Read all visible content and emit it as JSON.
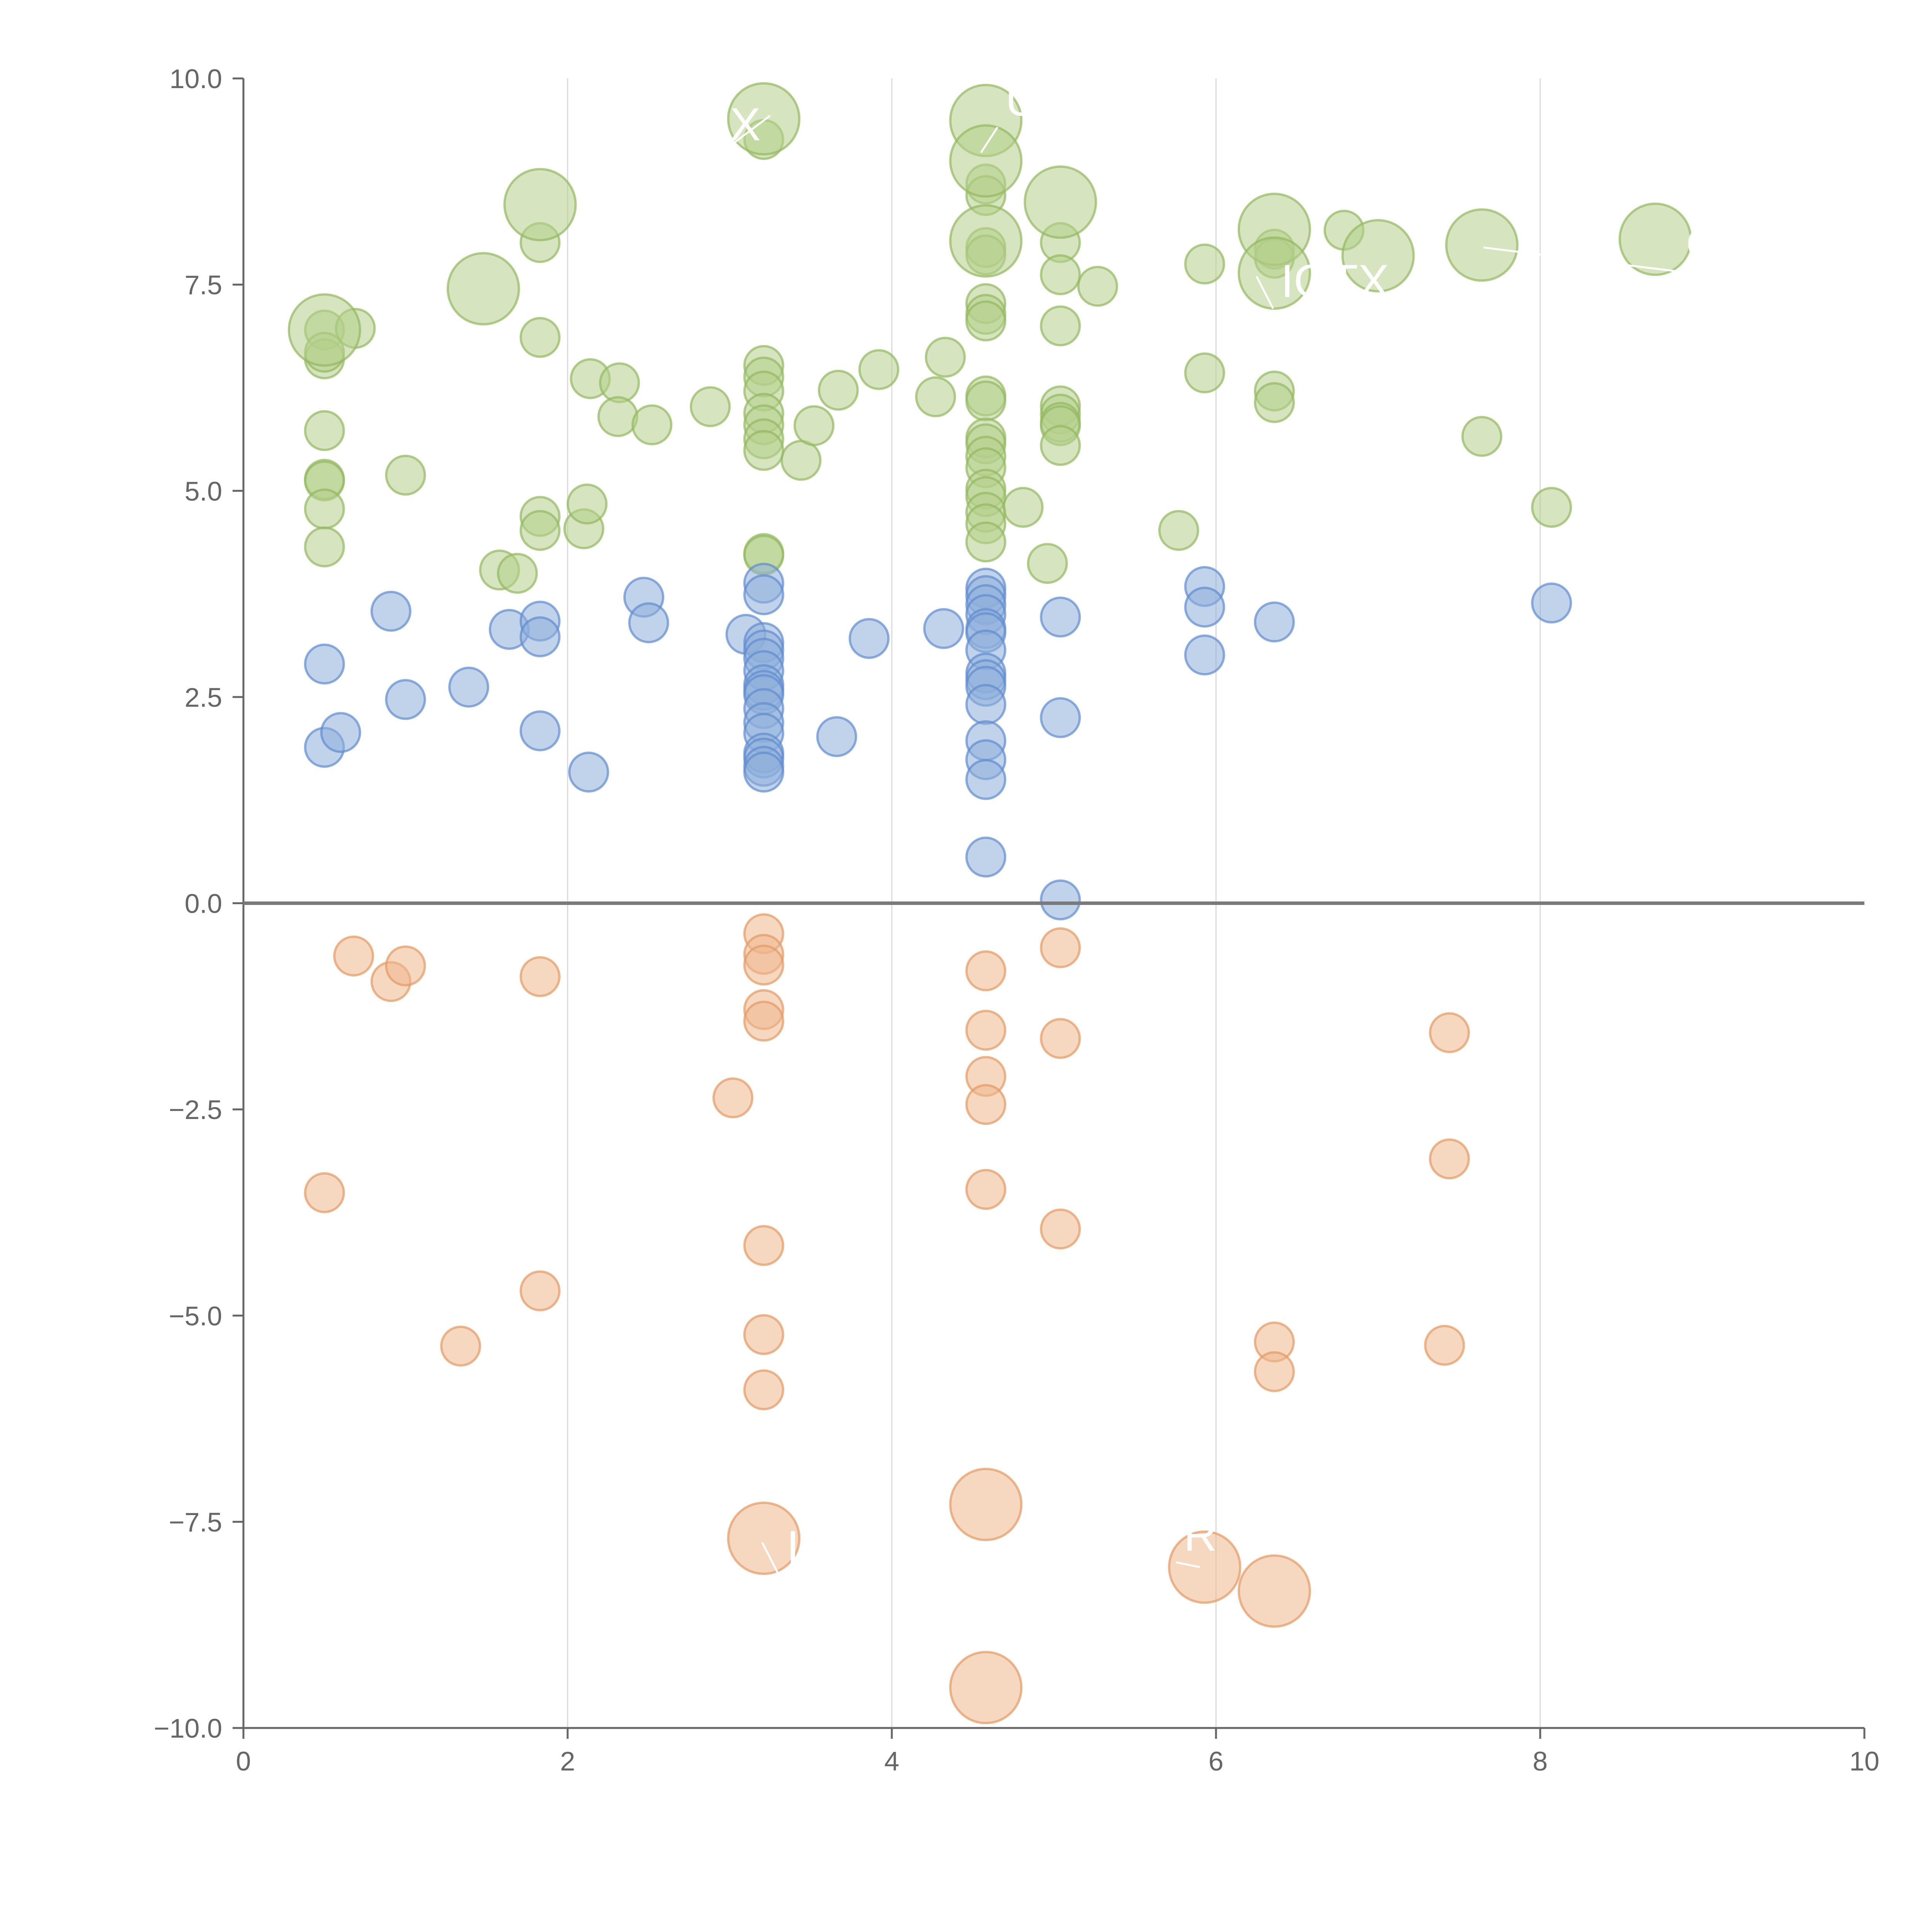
{
  "chart_data": {
    "type": "scatter",
    "title": "",
    "xlabel": "",
    "ylabel": "",
    "xlim": [
      0,
      10
    ],
    "ylim": [
      -10,
      10
    ],
    "grid": "vertical-x",
    "x_ticks": [
      "0",
      "2",
      "4",
      "6",
      "8",
      "10"
    ],
    "y_ticks": [
      "10.0",
      "7.5",
      "5.0",
      "2.5",
      "0.0",
      "−2.5",
      "−5.0",
      "−7.5",
      "−10.0"
    ],
    "colors": {
      "green_fill": "#b5cf8a",
      "green_stroke": "#93b860",
      "blue_fill": "#8eaedb",
      "blue_stroke": "#5f8ccf",
      "orange_fill": "#eeb68c",
      "orange_stroke": "#e29a64",
      "axis": "#666666"
    },
    "series": [
      {
        "name": "green",
        "color_key": "green",
        "points": [
          [
            0.5,
            6.95
          ],
          [
            0.69,
            6.97
          ],
          [
            0.5,
            6.6
          ],
          [
            0.5,
            6.68
          ],
          [
            0.5,
            5.73
          ],
          [
            0.5,
            5.14
          ],
          [
            0.5,
            5.12
          ],
          [
            0.5,
            4.78
          ],
          [
            0.5,
            4.32
          ],
          [
            1.0,
            5.19
          ],
          [
            1.58,
            4.04
          ],
          [
            1.69,
            4.0
          ],
          [
            1.83,
            8.01
          ],
          [
            1.83,
            6.86
          ],
          [
            1.83,
            4.69
          ],
          [
            1.83,
            4.52
          ],
          [
            2.1,
            4.54
          ],
          [
            2.12,
            4.84
          ],
          [
            2.14,
            6.36
          ],
          [
            2.32,
            6.31
          ],
          [
            2.31,
            5.9
          ],
          [
            2.52,
            5.8
          ],
          [
            2.88,
            6.02
          ],
          [
            3.21,
            6.52
          ],
          [
            3.21,
            6.38
          ],
          [
            3.21,
            6.21
          ],
          [
            3.21,
            5.94
          ],
          [
            3.21,
            5.8
          ],
          [
            3.21,
            5.63
          ],
          [
            3.21,
            5.49
          ],
          [
            3.21,
            4.24
          ],
          [
            3.21,
            4.22
          ],
          [
            3.21,
            9.26
          ],
          [
            3.44,
            5.37
          ],
          [
            3.52,
            5.79
          ],
          [
            3.67,
            6.22
          ],
          [
            3.92,
            6.47
          ],
          [
            4.27,
            6.14
          ],
          [
            4.33,
            6.62
          ],
          [
            4.58,
            8.72
          ],
          [
            4.58,
            8.58
          ],
          [
            4.58,
            7.95
          ],
          [
            4.58,
            7.86
          ],
          [
            4.58,
            7.27
          ],
          [
            4.58,
            7.14
          ],
          [
            4.58,
            7.06
          ],
          [
            4.58,
            6.15
          ],
          [
            4.58,
            6.09
          ],
          [
            4.58,
            5.64
          ],
          [
            4.58,
            5.57
          ],
          [
            4.58,
            5.42
          ],
          [
            4.58,
            5.28
          ],
          [
            4.58,
            5.02
          ],
          [
            4.58,
            4.93
          ],
          [
            4.58,
            4.74
          ],
          [
            4.58,
            4.6
          ],
          [
            4.58,
            4.38
          ],
          [
            4.81,
            4.8
          ],
          [
            4.96,
            4.12
          ],
          [
            5.04,
            8.01
          ],
          [
            5.04,
            7.62
          ],
          [
            5.04,
            7.0
          ],
          [
            5.04,
            6.03
          ],
          [
            5.04,
            5.93
          ],
          [
            5.04,
            5.83
          ],
          [
            5.04,
            5.79
          ],
          [
            5.04,
            5.55
          ],
          [
            5.27,
            7.48
          ],
          [
            5.77,
            4.52
          ],
          [
            5.93,
            7.75
          ],
          [
            5.93,
            6.43
          ],
          [
            6.36,
            7.93
          ],
          [
            6.36,
            7.82
          ],
          [
            6.36,
            6.21
          ],
          [
            6.36,
            6.07
          ],
          [
            6.79,
            8.16
          ],
          [
            7.64,
            5.66
          ],
          [
            8.07,
            4.8
          ]
        ]
      },
      {
        "name": "green-large",
        "color_key": "green",
        "size": "large",
        "points": [
          [
            0.5,
            6.95
          ],
          [
            1.48,
            7.45
          ],
          [
            1.83,
            8.47
          ],
          [
            3.21,
            9.51
          ],
          [
            4.58,
            9.49
          ],
          [
            4.58,
            9.0
          ],
          [
            4.58,
            8.03
          ],
          [
            5.04,
            8.5
          ],
          [
            6.36,
            8.17
          ],
          [
            6.36,
            7.64
          ],
          [
            7.0,
            7.85
          ],
          [
            7.64,
            7.98
          ],
          [
            8.71,
            8.05
          ]
        ]
      },
      {
        "name": "blue",
        "color_key": "blue",
        "points": [
          [
            0.5,
            2.9
          ],
          [
            0.5,
            1.89
          ],
          [
            0.6,
            2.07
          ],
          [
            0.91,
            3.54
          ],
          [
            1.0,
            2.47
          ],
          [
            1.39,
            2.62
          ],
          [
            1.64,
            3.32
          ],
          [
            1.83,
            3.42
          ],
          [
            1.83,
            3.23
          ],
          [
            1.83,
            2.09
          ],
          [
            2.13,
            1.59
          ],
          [
            2.47,
            3.71
          ],
          [
            2.5,
            3.4
          ],
          [
            3.1,
            3.26
          ],
          [
            3.21,
            3.88
          ],
          [
            3.21,
            3.74
          ],
          [
            3.21,
            3.16
          ],
          [
            3.21,
            3.07
          ],
          [
            3.21,
            2.97
          ],
          [
            3.21,
            2.82
          ],
          [
            3.21,
            2.65
          ],
          [
            3.21,
            2.58
          ],
          [
            3.21,
            2.53
          ],
          [
            3.21,
            2.36
          ],
          [
            3.21,
            2.19
          ],
          [
            3.21,
            2.06
          ],
          [
            3.21,
            1.82
          ],
          [
            3.21,
            1.76
          ],
          [
            3.21,
            1.66
          ],
          [
            3.21,
            1.59
          ],
          [
            3.66,
            2.02
          ],
          [
            3.86,
            3.21
          ],
          [
            4.32,
            3.33
          ],
          [
            4.58,
            3.82
          ],
          [
            4.58,
            3.73
          ],
          [
            4.58,
            3.62
          ],
          [
            4.58,
            3.5
          ],
          [
            4.58,
            3.33
          ],
          [
            4.58,
            3.28
          ],
          [
            4.58,
            3.07
          ],
          [
            4.58,
            2.79
          ],
          [
            4.58,
            2.71
          ],
          [
            4.58,
            2.63
          ],
          [
            4.58,
            2.41
          ],
          [
            4.58,
            1.97
          ],
          [
            4.58,
            1.74
          ],
          [
            4.58,
            1.5
          ],
          [
            4.58,
            0.56
          ],
          [
            5.04,
            3.47
          ],
          [
            5.04,
            2.25
          ],
          [
            5.04,
            0.04
          ],
          [
            5.93,
            3.84
          ],
          [
            5.93,
            3.59
          ],
          [
            5.93,
            3.01
          ],
          [
            6.36,
            3.41
          ],
          [
            8.07,
            3.64
          ]
        ]
      },
      {
        "name": "orange",
        "color_key": "orange",
        "points": [
          [
            0.5,
            -3.51
          ],
          [
            0.68,
            -0.64
          ],
          [
            0.91,
            -0.95
          ],
          [
            1.0,
            -0.76
          ],
          [
            1.34,
            -5.37
          ],
          [
            1.83,
            -0.89
          ],
          [
            1.83,
            -4.7
          ],
          [
            3.02,
            -2.36
          ],
          [
            3.21,
            -0.37
          ],
          [
            3.21,
            -0.62
          ],
          [
            3.21,
            -0.75
          ],
          [
            3.21,
            -1.29
          ],
          [
            3.21,
            -1.43
          ],
          [
            3.21,
            -4.15
          ],
          [
            3.21,
            -5.23
          ],
          [
            3.21,
            -5.9
          ],
          [
            4.58,
            -0.82
          ],
          [
            4.58,
            -1.54
          ],
          [
            4.58,
            -2.1
          ],
          [
            4.58,
            -2.44
          ],
          [
            4.58,
            -3.47
          ],
          [
            5.04,
            -0.54
          ],
          [
            5.04,
            -1.64
          ],
          [
            5.04,
            -3.95
          ],
          [
            6.36,
            -5.32
          ],
          [
            6.36,
            -5.68
          ],
          [
            7.41,
            -5.36
          ],
          [
            7.44,
            -1.57
          ],
          [
            7.44,
            -3.1
          ]
        ]
      },
      {
        "name": "orange-large",
        "color_key": "orange",
        "size": "large",
        "points": [
          [
            3.21,
            -7.7
          ],
          [
            4.58,
            -7.29
          ],
          [
            4.58,
            -9.51
          ],
          [
            5.93,
            -8.05
          ],
          [
            6.36,
            -8.34
          ]
        ]
      }
    ],
    "annotations": [
      "X",
      "UN",
      "IOTX",
      "ORJ",
      "IO",
      "R"
    ]
  }
}
